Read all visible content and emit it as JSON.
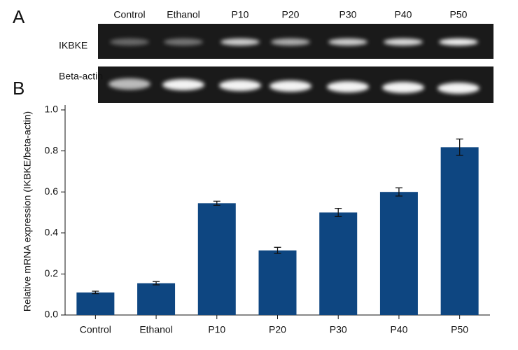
{
  "gel": {
    "panel_label": "A",
    "lanes": [
      "Control",
      "Ethanol",
      "P10",
      "P20",
      "P30",
      "P40",
      "P50"
    ],
    "rows": [
      "IKBKE",
      "Beta-actin"
    ]
  },
  "chart_data": {
    "type": "bar",
    "panel_label": "B",
    "y_label": "Relative mRNA expression (IKBKE/beta-actin)",
    "categories": [
      "Control",
      "Ethanol",
      "P10",
      "P20",
      "P30",
      "P40",
      "P50"
    ],
    "values": [
      0.11,
      0.155,
      0.545,
      0.315,
      0.5,
      0.6,
      0.818
    ],
    "errors": [
      0.006,
      0.008,
      0.01,
      0.015,
      0.02,
      0.02,
      0.04
    ],
    "color": "#0e4681",
    "ylim": [
      0,
      1
    ],
    "yticks": [
      {
        "value": 0,
        "label": "0.0"
      },
      0.2,
      0.4,
      0.6,
      0.8,
      {
        "value": 1,
        "label": "1.0"
      }
    ]
  }
}
